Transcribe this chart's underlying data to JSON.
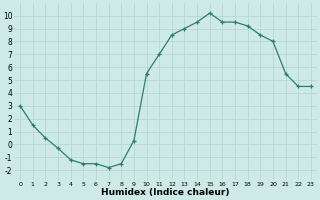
{
  "x": [
    0,
    1,
    2,
    3,
    4,
    5,
    6,
    7,
    8,
    9,
    10,
    11,
    12,
    13,
    14,
    15,
    16,
    17,
    18,
    19,
    20,
    21,
    22,
    23
  ],
  "y": [
    3.0,
    1.5,
    0.5,
    -0.3,
    -1.2,
    -1.5,
    -1.5,
    -1.8,
    -1.5,
    0.3,
    5.5,
    7.0,
    8.5,
    9.0,
    9.5,
    10.2,
    9.5,
    9.5,
    9.2,
    8.5,
    8.0,
    5.5,
    4.5,
    4.5
  ],
  "xlabel": "Humidex (Indice chaleur)",
  "ylim": [
    -2.8,
    11.0
  ],
  "xlim": [
    -0.5,
    23.5
  ],
  "yticks": [
    -2,
    -1,
    0,
    1,
    2,
    3,
    4,
    5,
    6,
    7,
    8,
    9,
    10
  ],
  "xticks": [
    0,
    1,
    2,
    3,
    4,
    5,
    6,
    7,
    8,
    9,
    10,
    11,
    12,
    13,
    14,
    15,
    16,
    17,
    18,
    19,
    20,
    21,
    22,
    23
  ],
  "line_color": "#2e7d6e",
  "marker": "+",
  "bg_color": "#ceeae6",
  "grid_color": "#b8d8d4"
}
